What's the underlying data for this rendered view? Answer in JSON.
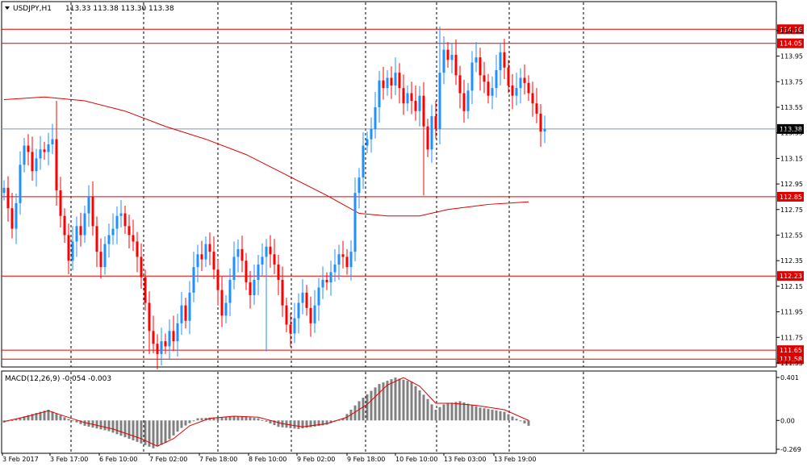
{
  "header": {
    "title": "USDJPY,H1",
    "ohlc": "113.33 113.38 113.30 113.38",
    "menu_icon": "triangle-down-icon"
  },
  "chart_data": [
    {
      "type": "candlestick",
      "symbol": "USDJPY",
      "timeframe": "H1",
      "ylim": [
        111.55,
        114.25
      ],
      "price_ticks": [
        "114.15",
        "113.95",
        "113.75",
        "113.55",
        "113.35",
        "113.15",
        "112.95",
        "112.75",
        "112.55",
        "112.35",
        "112.15",
        "111.95",
        "111.75",
        "111.55"
      ],
      "time_labels": [
        "3 Feb 2017",
        "3 Feb 17:00",
        "6 Feb 10:00",
        "7 Feb 02:00",
        "7 Feb 18:00",
        "8 Feb 10:00",
        "9 Feb 02:00",
        "9 Feb 18:00",
        "10 Feb 10:00",
        "13 Feb 03:00",
        "13 Feb 19:00"
      ],
      "grid": "vertical-dashed",
      "current_price": {
        "value": 113.38,
        "label": "113.38"
      },
      "levels": [
        {
          "value": 114.16,
          "label": "114.16"
        },
        {
          "value": 114.05,
          "label": "114.05"
        },
        {
          "value": 112.85,
          "label": "112.85"
        },
        {
          "value": 112.23,
          "label": "112.23"
        },
        {
          "value": 111.65,
          "label": "111.65"
        },
        {
          "value": 111.58,
          "label": "111.58"
        }
      ],
      "closes": [
        112.92,
        112.76,
        112.6,
        112.8,
        113.1,
        113.25,
        113.2,
        113.05,
        113.15,
        113.22,
        113.2,
        113.26,
        113.3,
        112.9,
        112.7,
        112.55,
        112.35,
        112.5,
        112.62,
        112.55,
        112.72,
        112.85,
        112.62,
        112.42,
        112.3,
        112.48,
        112.55,
        112.6,
        112.7,
        112.72,
        112.62,
        112.55,
        112.5,
        112.38,
        112.22,
        112.02,
        111.8,
        111.7,
        111.62,
        111.72,
        111.68,
        111.8,
        111.72,
        111.86,
        112.0,
        111.88,
        112.1,
        112.3,
        112.4,
        112.36,
        112.48,
        112.42,
        112.28,
        112.12,
        111.92,
        112.02,
        112.2,
        112.38,
        112.44,
        112.35,
        112.18,
        112.08,
        112.2,
        112.32,
        112.38,
        112.46,
        112.4,
        112.32,
        112.2,
        112.0,
        111.85,
        111.78,
        111.9,
        112.02,
        112.1,
        111.98,
        111.86,
        112.0,
        112.14,
        112.2,
        112.18,
        112.26,
        112.32,
        112.4,
        112.38,
        112.3,
        112.42,
        112.88,
        113.0,
        113.25,
        113.3,
        113.38,
        113.55,
        113.76,
        113.7,
        113.78,
        113.72,
        113.82,
        113.7,
        113.58,
        113.66,
        113.6,
        113.52,
        113.64,
        113.4,
        113.22,
        113.48,
        113.38,
        113.82,
        114.0,
        113.92,
        113.96,
        113.8,
        113.66,
        113.52,
        113.68,
        113.9,
        113.94,
        113.8,
        113.75,
        113.64,
        113.7,
        113.84,
        113.98,
        113.86,
        113.72,
        113.64,
        113.7,
        113.78,
        113.74,
        113.66,
        113.58,
        113.5,
        113.36,
        113.38
      ],
      "opens_first": 112.88,
      "highs_hint": {
        "spike_at_index": 13,
        "spike_value": 113.6,
        "spike2_at_index": 108,
        "spike2_value": 114.18,
        "spike3_at_index": 117,
        "spike3_value": 114.06
      },
      "moving_average": {
        "points": [
          [
            0,
            113.61
          ],
          [
            10,
            113.63
          ],
          [
            20,
            113.6
          ],
          [
            30,
            113.52
          ],
          [
            40,
            113.4
          ],
          [
            50,
            113.3
          ],
          [
            60,
            113.18
          ],
          [
            70,
            113.02
          ],
          [
            80,
            112.86
          ],
          [
            88,
            112.72
          ],
          [
            95,
            112.7
          ],
          [
            103,
            112.7
          ],
          [
            110,
            112.75
          ],
          [
            120,
            112.79
          ],
          [
            130,
            112.81
          ]
        ]
      }
    },
    {
      "type": "histogram",
      "title": "MACD(12,26,9) -0.054 -0.003",
      "ylim": [
        -0.269,
        0.401
      ],
      "ticks": [
        "0.401",
        "0.00",
        "-0.269"
      ],
      "histogram_segments": [
        [
          0,
          -0.02
        ],
        [
          6,
          0.05
        ],
        [
          11,
          0.1
        ],
        [
          15,
          0.03
        ],
        [
          20,
          -0.05
        ],
        [
          26,
          -0.1
        ],
        [
          33,
          -0.2
        ],
        [
          37,
          -0.26
        ],
        [
          40,
          -0.21
        ],
        [
          44,
          -0.07
        ],
        [
          48,
          0.02
        ],
        [
          53,
          0.03
        ],
        [
          58,
          0.04
        ],
        [
          63,
          0.02
        ],
        [
          68,
          -0.06
        ],
        [
          73,
          -0.08
        ],
        [
          80,
          -0.04
        ],
        [
          84,
          0.02
        ],
        [
          88,
          0.18
        ],
        [
          93,
          0.34
        ],
        [
          97,
          0.4
        ],
        [
          101,
          0.36
        ],
        [
          105,
          0.2
        ],
        [
          107,
          0.1
        ],
        [
          109,
          0.15
        ],
        [
          113,
          0.18
        ],
        [
          118,
          0.12
        ],
        [
          124,
          0.08
        ],
        [
          130,
          -0.05
        ]
      ],
      "signal_points": [
        [
          0,
          -0.01
        ],
        [
          6,
          0.04
        ],
        [
          11,
          0.09
        ],
        [
          15,
          0.04
        ],
        [
          20,
          -0.02
        ],
        [
          27,
          -0.08
        ],
        [
          34,
          -0.17
        ],
        [
          38,
          -0.24
        ],
        [
          42,
          -0.17
        ],
        [
          46,
          -0.05
        ],
        [
          51,
          0.02
        ],
        [
          57,
          0.04
        ],
        [
          63,
          0.03
        ],
        [
          69,
          -0.03
        ],
        [
          74,
          -0.06
        ],
        [
          80,
          -0.03
        ],
        [
          85,
          0.03
        ],
        [
          90,
          0.15
        ],
        [
          95,
          0.33
        ],
        [
          99,
          0.4
        ],
        [
          103,
          0.32
        ],
        [
          107,
          0.16
        ],
        [
          111,
          0.16
        ],
        [
          117,
          0.14
        ],
        [
          124,
          0.1
        ],
        [
          130,
          0.0
        ]
      ]
    }
  ],
  "colors": {
    "bull": "#1e90ff",
    "bear": "#ff0000",
    "level_line": "#e00000",
    "grid": "#000000",
    "ma_line": "#e00000",
    "current_line": "#7f97b4",
    "current_label_bg": "#000000",
    "histogram": "#808080",
    "signal": "#e00000"
  }
}
